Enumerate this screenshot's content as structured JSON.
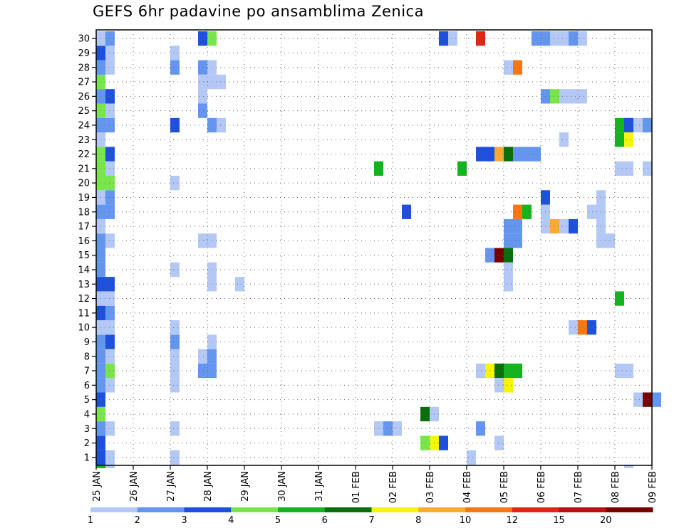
{
  "chart_data": {
    "type": "heatmap",
    "title": "GEFS 6hr padavine po ansamblima Zenica",
    "y_ticks": [
      "1",
      "2",
      "3",
      "4",
      "5",
      "6",
      "7",
      "8",
      "9",
      "10",
      "11",
      "12",
      "13",
      "14",
      "15",
      "16",
      "17",
      "18",
      "19",
      "20",
      "21",
      "22",
      "23",
      "24",
      "25",
      "26",
      "27",
      "28",
      "29",
      "30"
    ],
    "x_ticks": [
      "25 JAN",
      "26 JAN",
      "27 JAN",
      "28 JAN",
      "29 JAN",
      "30 JAN",
      "31 JAN",
      "01 FEB",
      "02 FEB",
      "03 FEB",
      "04 FEB",
      "05 FEB",
      "06 FEB",
      "07 FEB",
      "08 FEB",
      "09 FEB"
    ],
    "time_step": "6hr",
    "grid": true,
    "colorbar": {
      "labels": [
        "1",
        "2",
        "3",
        "4",
        "5",
        "6",
        "7",
        "8",
        "10",
        "12",
        "15",
        "20"
      ],
      "colors": [
        "#b4c8f5",
        "#6496f0",
        "#1e50dc",
        "#78e64b",
        "#14b41e",
        "#0a6e0a",
        "#f5f50a",
        "#faaa32",
        "#f57814",
        "#dc2814",
        "#b41414",
        "#780000"
      ]
    },
    "cells": [
      [
        1,
        0,
        3
      ],
      [
        1,
        1,
        1
      ],
      [
        2,
        0,
        3
      ],
      [
        3,
        0,
        2
      ],
      [
        3,
        1,
        1
      ],
      [
        4,
        0,
        4
      ],
      [
        5,
        0,
        3
      ],
      [
        6,
        0,
        2
      ],
      [
        6,
        1,
        1
      ],
      [
        7,
        0,
        2
      ],
      [
        7,
        1,
        4
      ],
      [
        8,
        0,
        2
      ],
      [
        8,
        1,
        1
      ],
      [
        9,
        0,
        2
      ],
      [
        9,
        1,
        3
      ],
      [
        10,
        0,
        1
      ],
      [
        10,
        1,
        1
      ],
      [
        11,
        0,
        3
      ],
      [
        11,
        1,
        2
      ],
      [
        12,
        0,
        1
      ],
      [
        12,
        1,
        1
      ],
      [
        13,
        0,
        3
      ],
      [
        13,
        1,
        3
      ],
      [
        14,
        0,
        2
      ],
      [
        15,
        0,
        2
      ],
      [
        16,
        0,
        2
      ],
      [
        16,
        1,
        1
      ],
      [
        17,
        0,
        1
      ],
      [
        18,
        0,
        2
      ],
      [
        18,
        1,
        2
      ],
      [
        19,
        0,
        1
      ],
      [
        19,
        1,
        2
      ],
      [
        20,
        0,
        4
      ],
      [
        20,
        1,
        4
      ],
      [
        21,
        0,
        4
      ],
      [
        21,
        1,
        1
      ],
      [
        22,
        0,
        4
      ],
      [
        22,
        1,
        3
      ],
      [
        23,
        0,
        1
      ],
      [
        24,
        0,
        2
      ],
      [
        24,
        1,
        2
      ],
      [
        25,
        0,
        4
      ],
      [
        25,
        1,
        1
      ],
      [
        26,
        0,
        2
      ],
      [
        26,
        1,
        3
      ],
      [
        27,
        0,
        4
      ],
      [
        28,
        0,
        2
      ],
      [
        28,
        1,
        1
      ],
      [
        29,
        0,
        3
      ],
      [
        29,
        1,
        1
      ],
      [
        30,
        0,
        1
      ],
      [
        30,
        1,
        2
      ],
      [
        0,
        0,
        5
      ],
      [
        0,
        1,
        1
      ],
      [
        1,
        8,
        1
      ],
      [
        3,
        8,
        1
      ],
      [
        6,
        8,
        1
      ],
      [
        7,
        8,
        1
      ],
      [
        8,
        8,
        1
      ],
      [
        9,
        8,
        2
      ],
      [
        10,
        8,
        1
      ],
      [
        14,
        8,
        1
      ],
      [
        20,
        8,
        1
      ],
      [
        24,
        8,
        3
      ],
      [
        28,
        8,
        2
      ],
      [
        29,
        8,
        1
      ],
      [
        30,
        11,
        3
      ],
      [
        30,
        12,
        4
      ],
      [
        28,
        11,
        2
      ],
      [
        28,
        12,
        1
      ],
      [
        27,
        11,
        1
      ],
      [
        27,
        12,
        1
      ],
      [
        27,
        13,
        1
      ],
      [
        26,
        11,
        1
      ],
      [
        25,
        11,
        2
      ],
      [
        24,
        12,
        2
      ],
      [
        24,
        13,
        1
      ],
      [
        16,
        11,
        1
      ],
      [
        16,
        12,
        1
      ],
      [
        14,
        12,
        1
      ],
      [
        13,
        12,
        1
      ],
      [
        7,
        11,
        2
      ],
      [
        7,
        12,
        2
      ],
      [
        8,
        11,
        1
      ],
      [
        8,
        12,
        2
      ],
      [
        9,
        12,
        1
      ],
      [
        13,
        15,
        1
      ],
      [
        21,
        30,
        5
      ],
      [
        3,
        30,
        1
      ],
      [
        3,
        31,
        2
      ],
      [
        3,
        32,
        1
      ],
      [
        18,
        33,
        3
      ],
      [
        4,
        35,
        6
      ],
      [
        4,
        36,
        1
      ],
      [
        2,
        35,
        4
      ],
      [
        2,
        36,
        7
      ],
      [
        2,
        37,
        3
      ],
      [
        30,
        37,
        3
      ],
      [
        30,
        38,
        1
      ],
      [
        1,
        40,
        1
      ],
      [
        21,
        39,
        5
      ],
      [
        30,
        41,
        10
      ],
      [
        22,
        41,
        3
      ],
      [
        22,
        42,
        3
      ],
      [
        22,
        43,
        8
      ],
      [
        22,
        44,
        6
      ],
      [
        22,
        45,
        2
      ],
      [
        22,
        46,
        2
      ],
      [
        22,
        47,
        2
      ],
      [
        3,
        41,
        2
      ],
      [
        2,
        43,
        1
      ],
      [
        7,
        41,
        1
      ],
      [
        7,
        42,
        7
      ],
      [
        7,
        43,
        6
      ],
      [
        7,
        44,
        5
      ],
      [
        7,
        45,
        5
      ],
      [
        6,
        43,
        1
      ],
      [
        6,
        44,
        7
      ],
      [
        15,
        42,
        2
      ],
      [
        15,
        43,
        12
      ],
      [
        15,
        44,
        6
      ],
      [
        14,
        44,
        1
      ],
      [
        13,
        44,
        1
      ],
      [
        17,
        44,
        2
      ],
      [
        17,
        45,
        2
      ],
      [
        16,
        44,
        2
      ],
      [
        16,
        45,
        2
      ],
      [
        28,
        44,
        1
      ],
      [
        28,
        45,
        9
      ],
      [
        18,
        45,
        9
      ],
      [
        18,
        46,
        5
      ],
      [
        30,
        47,
        2
      ],
      [
        30,
        48,
        2
      ],
      [
        30,
        49,
        1
      ],
      [
        30,
        50,
        1
      ],
      [
        30,
        51,
        2
      ],
      [
        30,
        52,
        1
      ],
      [
        26,
        48,
        2
      ],
      [
        26,
        49,
        4
      ],
      [
        26,
        50,
        1
      ],
      [
        26,
        51,
        1
      ],
      [
        26,
        52,
        1
      ],
      [
        19,
        48,
        3
      ],
      [
        18,
        48,
        1
      ],
      [
        17,
        48,
        1
      ],
      [
        17,
        49,
        8
      ],
      [
        17,
        50,
        1
      ],
      [
        17,
        51,
        3
      ],
      [
        23,
        50,
        1
      ],
      [
        10,
        51,
        1
      ],
      [
        10,
        52,
        9
      ],
      [
        10,
        53,
        3
      ],
      [
        19,
        54,
        1
      ],
      [
        18,
        53,
        1
      ],
      [
        18,
        54,
        1
      ],
      [
        17,
        54,
        1
      ],
      [
        16,
        54,
        1
      ],
      [
        16,
        55,
        1
      ],
      [
        24,
        56,
        5
      ],
      [
        24,
        57,
        3
      ],
      [
        24,
        58,
        1
      ],
      [
        24,
        59,
        2
      ],
      [
        23,
        56,
        5
      ],
      [
        23,
        57,
        7
      ],
      [
        12,
        56,
        5
      ],
      [
        21,
        56,
        1
      ],
      [
        21,
        57,
        1
      ],
      [
        21,
        59,
        1
      ],
      [
        7,
        56,
        1
      ],
      [
        7,
        57,
        1
      ],
      [
        0,
        57,
        1
      ],
      [
        5,
        58,
        1
      ],
      [
        5,
        59,
        12
      ],
      [
        5,
        60,
        2
      ]
    ]
  }
}
